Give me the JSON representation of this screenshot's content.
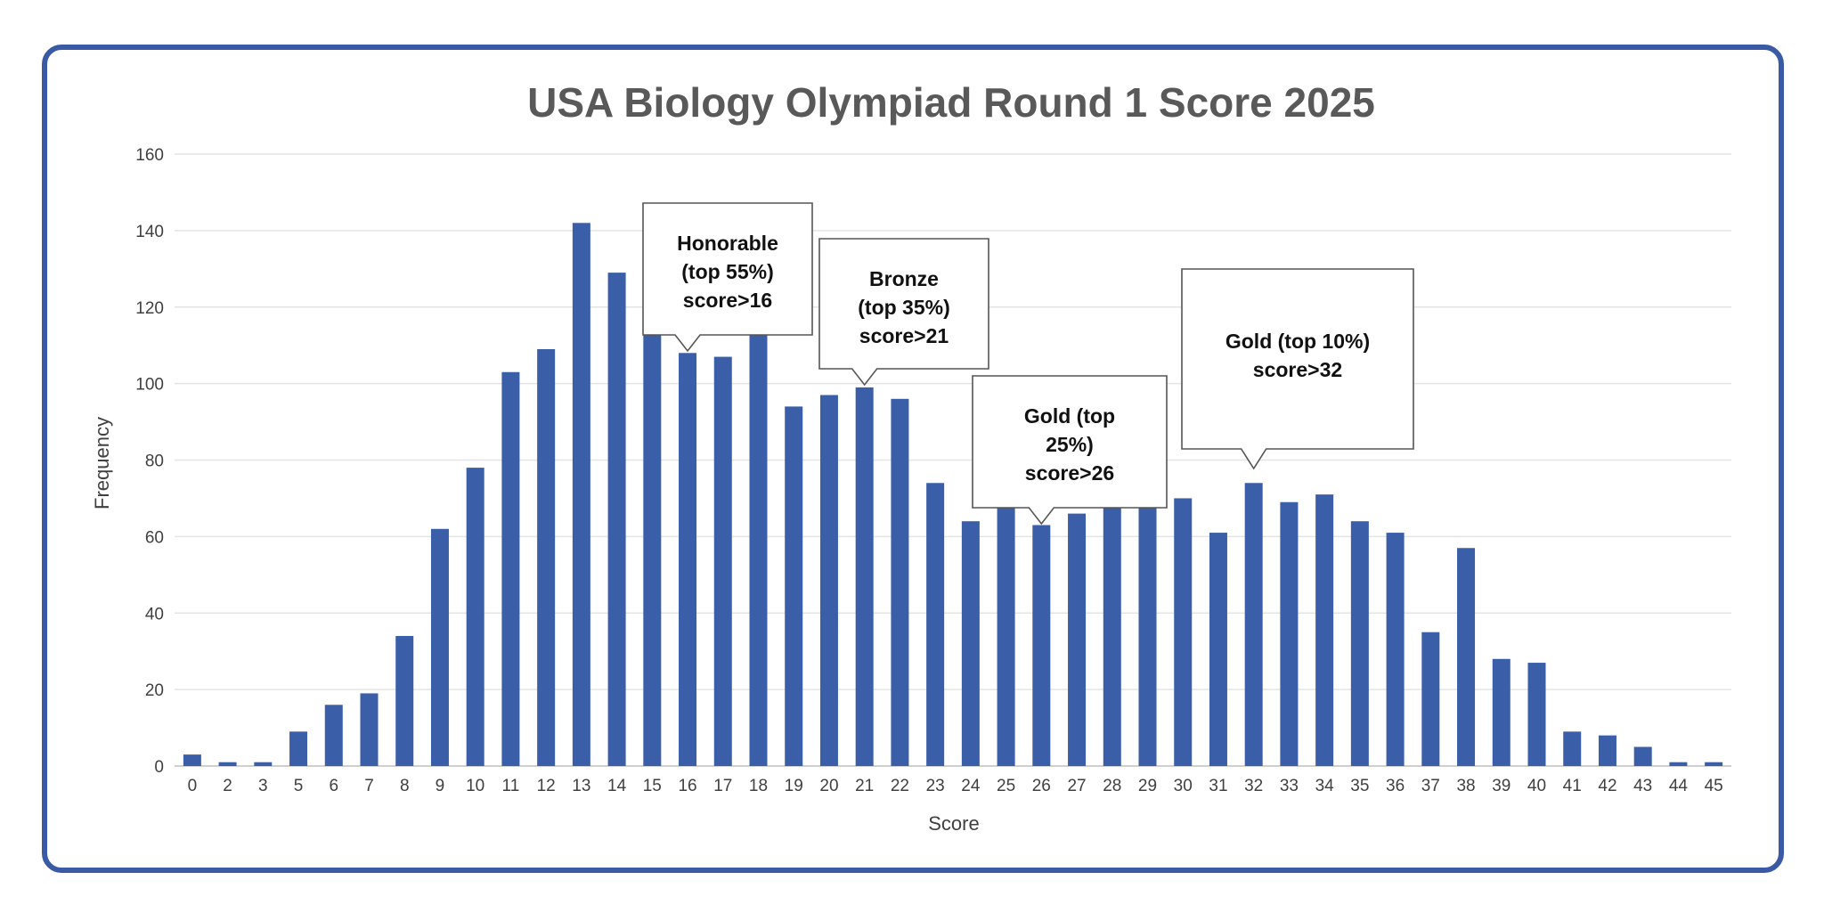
{
  "chart_data": {
    "type": "bar",
    "title": "USA Biology Olympiad Round 1 Score 2025",
    "xlabel": "Score",
    "ylabel": "Frequency",
    "ylim": [
      0,
      160
    ],
    "yticks": [
      0,
      20,
      40,
      60,
      80,
      100,
      120,
      140,
      160
    ],
    "grid": true,
    "legend": "none",
    "bar_color": "#3a5ea8",
    "categories": [
      "0",
      "2",
      "3",
      "5",
      "6",
      "7",
      "8",
      "9",
      "10",
      "11",
      "12",
      "13",
      "14",
      "15",
      "16",
      "17",
      "18",
      "19",
      "20",
      "21",
      "22",
      "23",
      "24",
      "25",
      "26",
      "27",
      "28",
      "29",
      "30",
      "31",
      "32",
      "33",
      "34",
      "35",
      "36",
      "37",
      "38",
      "39",
      "40",
      "41",
      "42",
      "43",
      "44",
      "45"
    ],
    "values": [
      3,
      1,
      1,
      9,
      16,
      19,
      34,
      62,
      78,
      103,
      109,
      142,
      129,
      139,
      108,
      107,
      113,
      94,
      97,
      99,
      96,
      74,
      64,
      73,
      63,
      66,
      77,
      76,
      70,
      61,
      74,
      69,
      71,
      64,
      61,
      35,
      57,
      28,
      27,
      9,
      8,
      5,
      1,
      1
    ],
    "annotations": [
      {
        "lines": [
          "Honorable",
          "(top 55%)",
          "score>16"
        ],
        "points_to": "16"
      },
      {
        "lines": [
          "Bronze",
          "(top 35%)",
          "score>21"
        ],
        "points_to": "21"
      },
      {
        "lines": [
          "Gold (top",
          "25%)",
          "score>26"
        ],
        "points_to": "26"
      },
      {
        "lines": [
          "Gold (top 10%)",
          "score>32"
        ],
        "points_to": "32"
      }
    ]
  }
}
